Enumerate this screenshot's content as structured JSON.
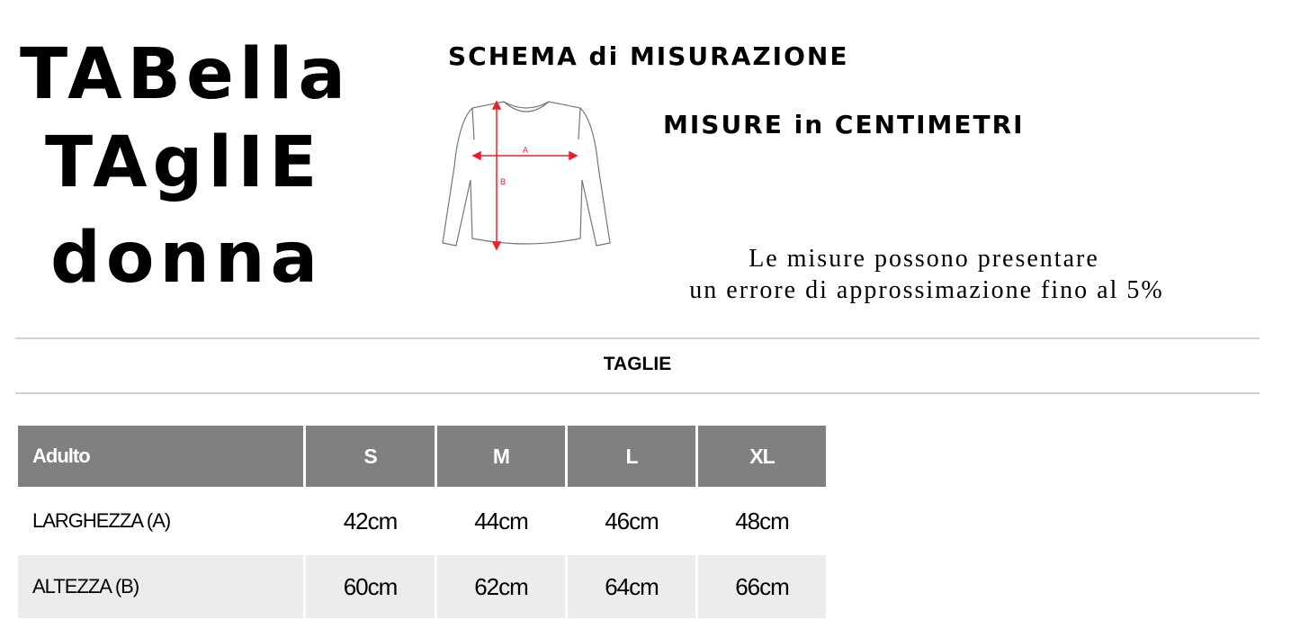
{
  "title": {
    "line1": "TABella",
    "line2": "TAglIE",
    "line3": "donna"
  },
  "diagram": {
    "heading": "SCHEMA di MISURAZIONE",
    "label_a": "A",
    "label_b": "B",
    "arrow_color": "#e8202a"
  },
  "units_note": "MISURE in CENTIMETRI",
  "disclaimer": {
    "line1": "Le misure possono presentare",
    "line2": "un errore di approssimazione fino al 5%"
  },
  "section_title": "TAGLIE",
  "table": {
    "header": [
      "Adulto",
      "S",
      "M",
      "L",
      "XL"
    ],
    "rows": [
      {
        "label": "LARGHEZZA (A)",
        "values": [
          "42cm",
          "44cm",
          "46cm",
          "48cm"
        ]
      },
      {
        "label": "ALTEZZA (B)",
        "values": [
          "60cm",
          "62cm",
          "64cm",
          "66cm"
        ]
      }
    ],
    "colors": {
      "header_bg": "#808080",
      "stripe_bg": "#ececec"
    }
  }
}
